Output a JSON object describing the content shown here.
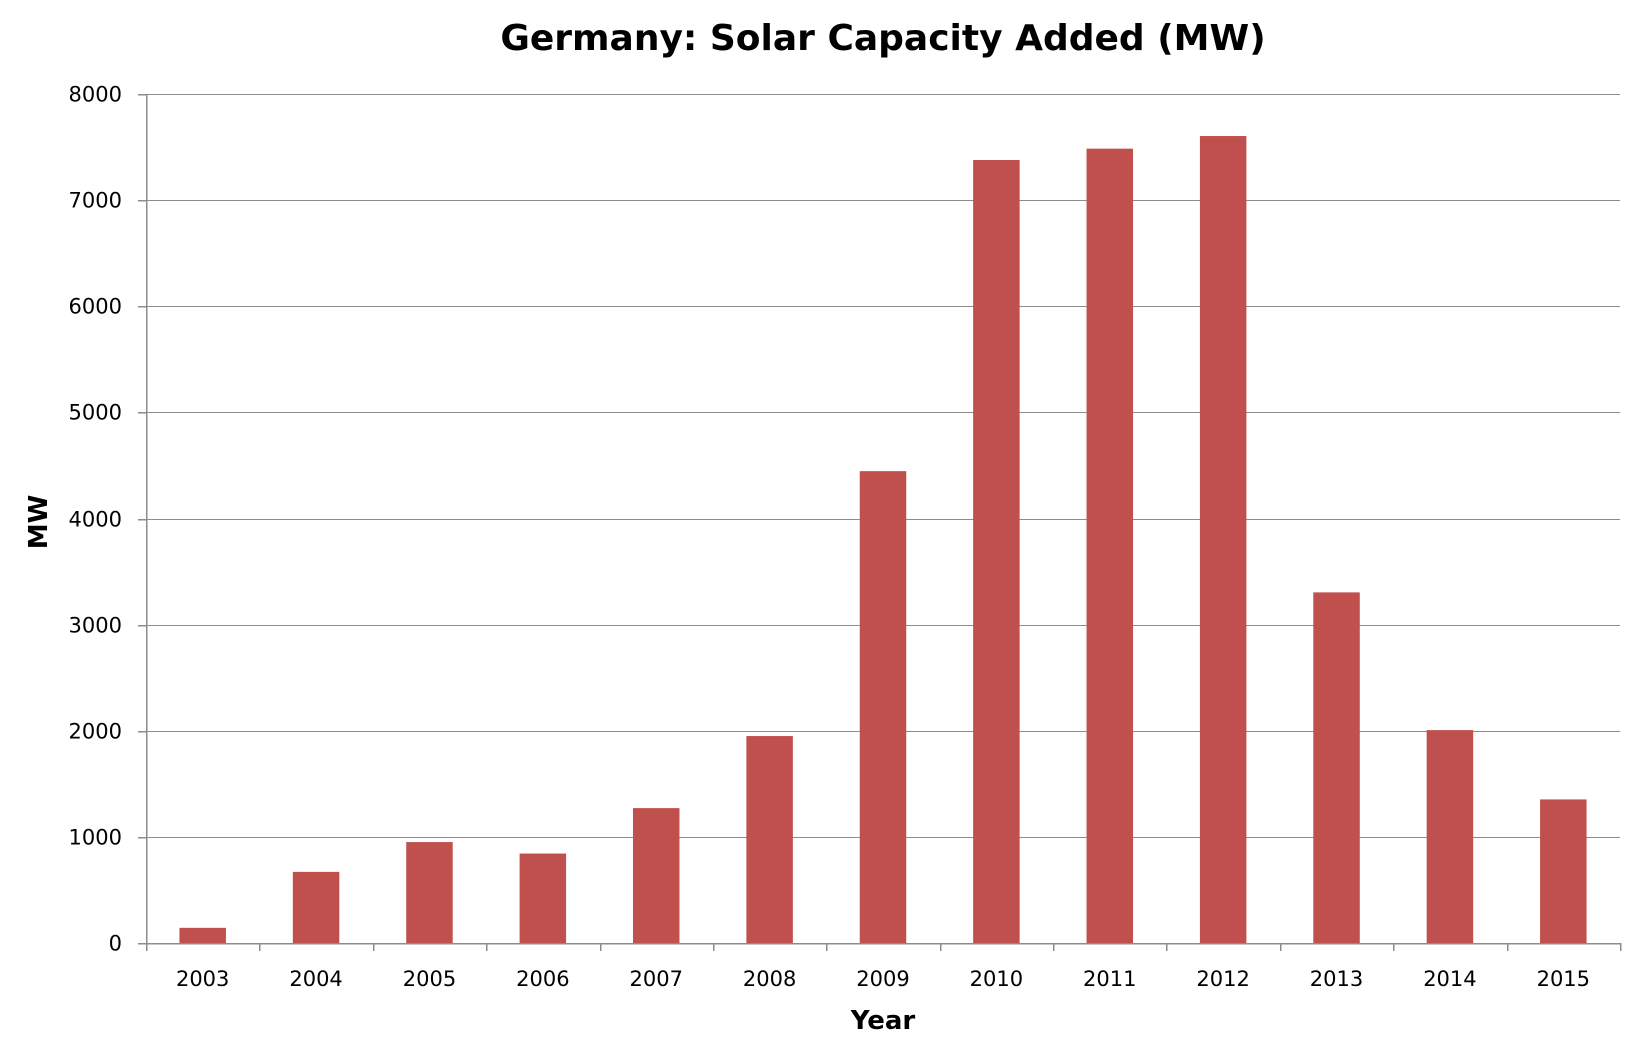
{
  "chart_data": {
    "type": "bar",
    "title": "Germany: Solar Capacity Added (MW)",
    "xlabel": "Year",
    "ylabel": "MW",
    "categories": [
      "2003",
      "2004",
      "2005",
      "2006",
      "2007",
      "2008",
      "2009",
      "2010",
      "2011",
      "2012",
      "2013",
      "2014",
      "2015"
    ],
    "values": [
      143,
      670,
      951,
      843,
      1271,
      1950,
      4446,
      7378,
      7485,
      7604,
      3304,
      2006,
      1353
    ],
    "ylim": [
      0,
      8000
    ],
    "yticks": [
      "0",
      "1000",
      "2000",
      "3000",
      "4000",
      "5000",
      "6000",
      "7000",
      "8000"
    ],
    "grid": true,
    "legend": "none",
    "bar_color": "#c0504d",
    "grid_color": "#8c8c8c"
  }
}
